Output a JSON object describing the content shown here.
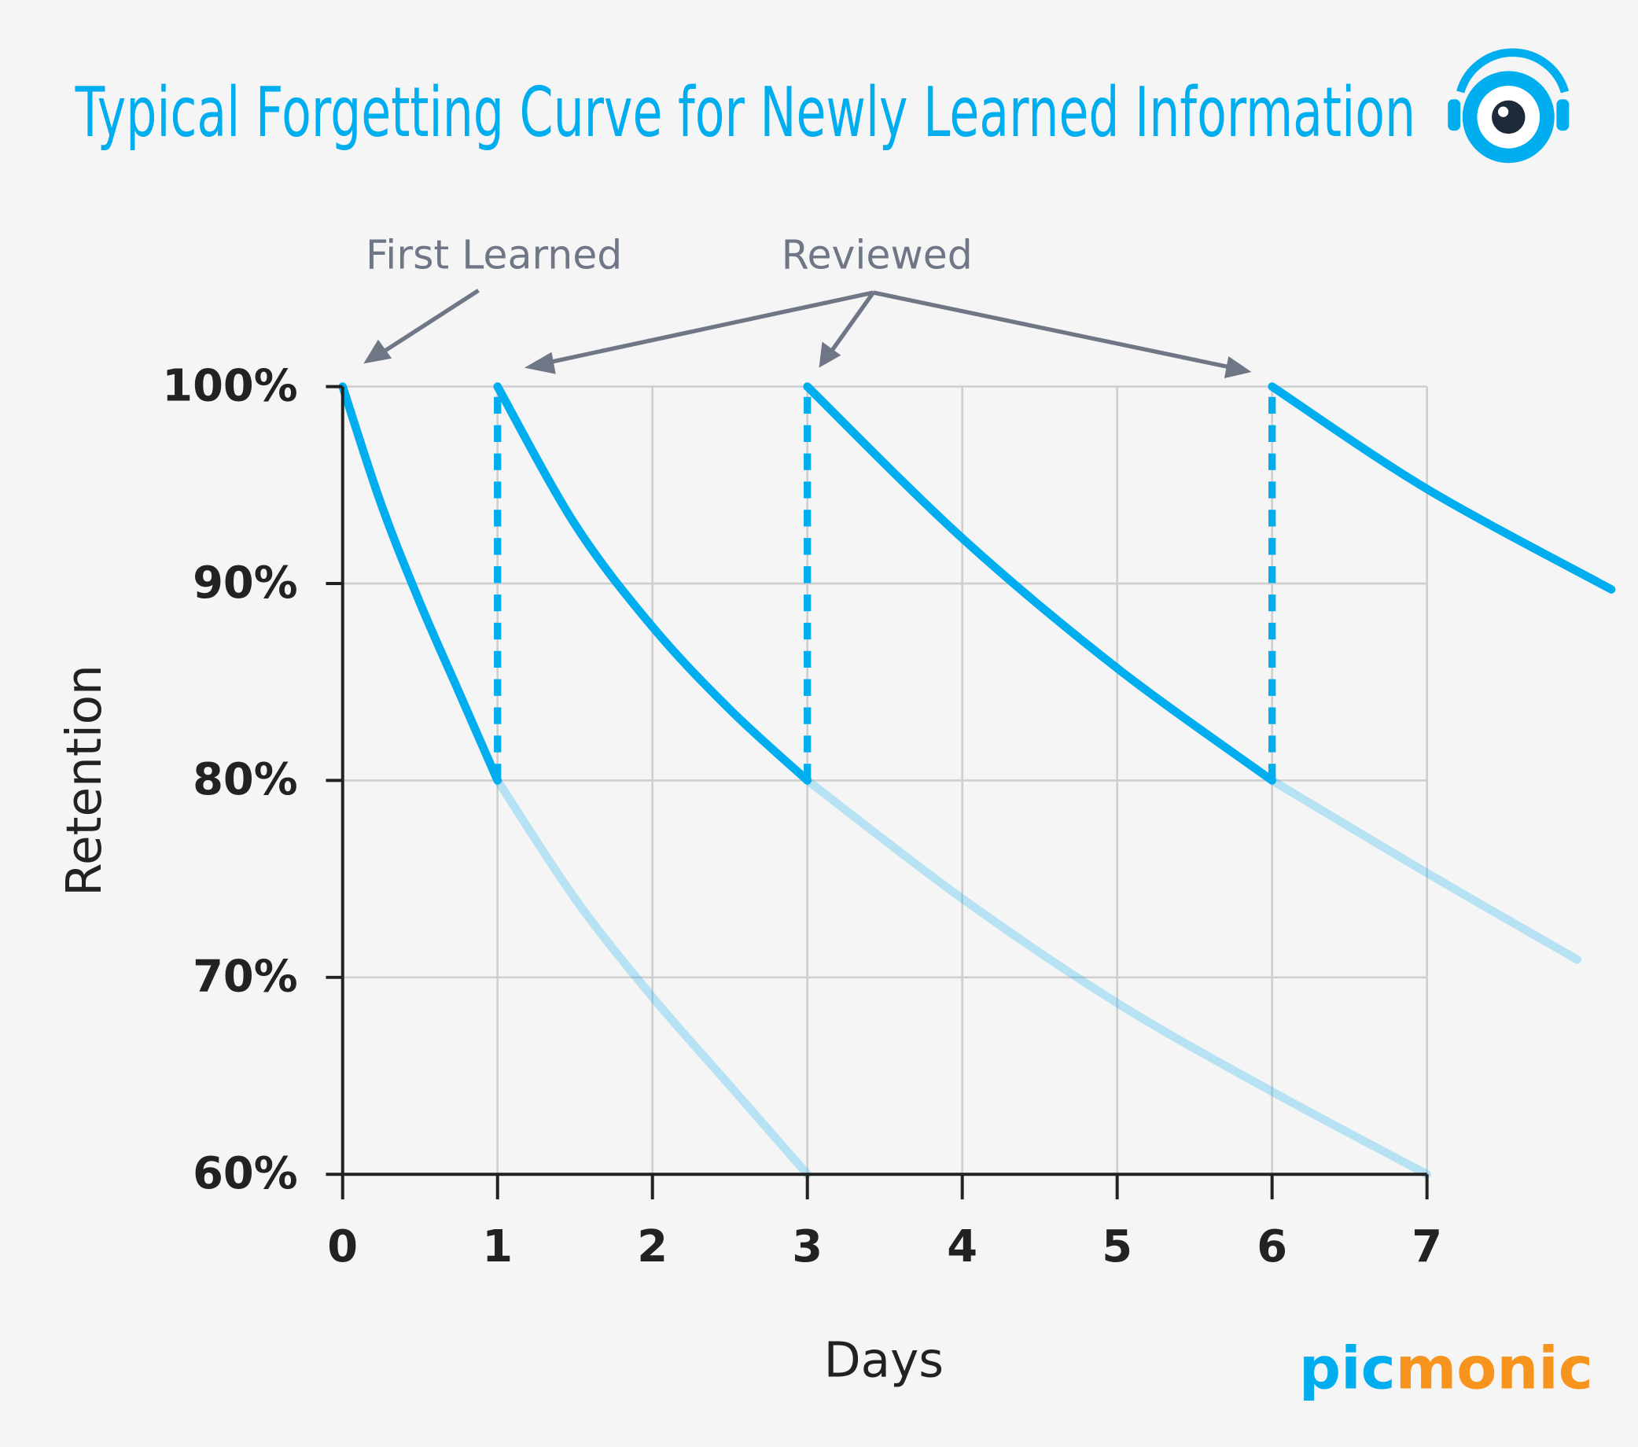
{
  "chart_data": {
    "type": "line",
    "title": "Typical Forgetting Curve for Newly Learned Information",
    "x_label": "Days",
    "y_label": "Retention",
    "annotations": [
      "First Learned",
      "Reviewed"
    ],
    "brand": [
      "pic",
      "monic"
    ],
    "xlim": [
      0,
      7
    ],
    "ylim": [
      60,
      100
    ],
    "xticks": [
      0,
      1,
      2,
      3,
      4,
      5,
      6,
      7
    ],
    "yticks": [
      {
        "value": 60,
        "label": "60%"
      },
      {
        "value": 70,
        "label": "70%"
      },
      {
        "value": 80,
        "label": "80%"
      },
      {
        "value": 90,
        "label": "90%"
      },
      {
        "value": 100,
        "label": "100%"
      }
    ],
    "grid": true,
    "series": [
      {
        "x": [
          1,
          1.5,
          2,
          2.5,
          3
        ],
        "values": [
          80,
          74,
          69,
          64.5,
          60
        ],
        "color": "#00adef",
        "opacity": 0.25,
        "dashed": false
      },
      {
        "x": [
          3,
          4,
          5,
          6,
          7
        ],
        "values": [
          80,
          74,
          68.7,
          64.2,
          60
        ],
        "color": "#00adef",
        "opacity": 0.25,
        "dashed": false
      },
      {
        "x": [
          6,
          7,
          7.97
        ],
        "values": [
          80,
          75.3,
          70.9
        ],
        "color": "#00adef",
        "opacity": 0.25,
        "dashed": false
      },
      {
        "x": [
          0,
          0.25,
          0.5,
          0.75,
          1
        ],
        "values": [
          100,
          94,
          89,
          84.5,
          80
        ],
        "color": "#00adef",
        "opacity": 1,
        "dashed": false
      },
      {
        "x": [
          1,
          1.5,
          2,
          2.5,
          3
        ],
        "values": [
          100,
          93,
          87.8,
          83.6,
          80
        ],
        "color": "#00adef",
        "opacity": 1,
        "dashed": false
      },
      {
        "x": [
          3,
          4,
          5,
          6
        ],
        "values": [
          100,
          92.3,
          85.7,
          80
        ],
        "color": "#00adef",
        "opacity": 1,
        "dashed": false
      },
      {
        "x": [
          6,
          7,
          8.19
        ],
        "values": [
          100,
          94.8,
          89.7
        ],
        "color": "#00adef",
        "opacity": 1,
        "dashed": false
      },
      {
        "x": [
          1,
          1
        ],
        "values": [
          80,
          100
        ],
        "color": "#00adef",
        "opacity": 1,
        "dashed": true
      },
      {
        "x": [
          3,
          3
        ],
        "values": [
          80,
          100
        ],
        "color": "#00adef",
        "opacity": 1,
        "dashed": true
      },
      {
        "x": [
          6,
          6
        ],
        "values": [
          80,
          100
        ],
        "color": "#00adef",
        "opacity": 1,
        "dashed": true
      }
    ]
  }
}
